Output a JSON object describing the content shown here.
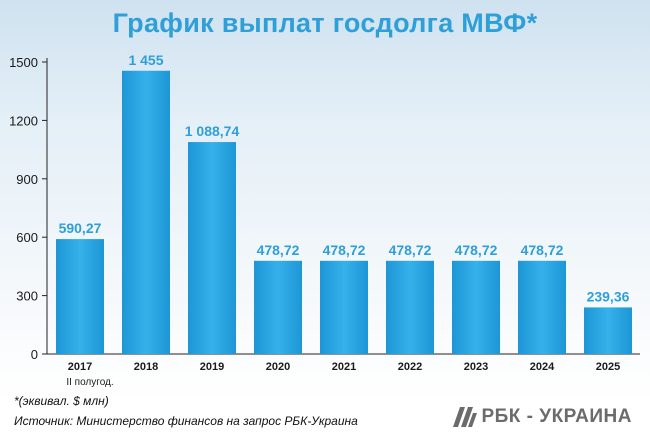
{
  "title": "График выплат госдолга МВФ*",
  "footnote": "*(эквивал. $ млн)",
  "source": "Источник: Министерство финансов на запрос РБК-Украина",
  "brand": "РБК - УКРАИНА",
  "colors": {
    "bar": "#29a6e3",
    "label": "#2f9fd8",
    "logo": "#6b6b6b"
  },
  "chart_data": {
    "type": "bar",
    "title": "График выплат госдолга МВФ*",
    "categories": [
      "2017",
      "2018",
      "2019",
      "2020",
      "2021",
      "2022",
      "2023",
      "2024",
      "2025"
    ],
    "category_sublabels": [
      "II полугод.",
      "",
      "",
      "",
      "",
      "",
      "",
      "",
      ""
    ],
    "values": [
      590.27,
      1455,
      1088.74,
      478.72,
      478.72,
      478.72,
      478.72,
      478.72,
      239.36
    ],
    "value_labels": [
      "590,27",
      "1 455",
      "1 088,74",
      "478,72",
      "478,72",
      "478,72",
      "478,72",
      "478,72",
      "239,36"
    ],
    "ylim": [
      0,
      1500
    ],
    "yticks": [
      0,
      300,
      600,
      900,
      1200,
      1500
    ],
    "grid": false,
    "xlabel": "",
    "ylabel": ""
  }
}
